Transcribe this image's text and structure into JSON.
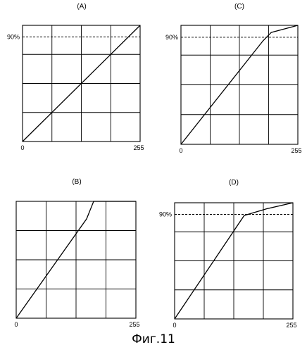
{
  "figure": {
    "caption": "Фиг.11",
    "panels": [
      {
        "id": "A",
        "title": "(A)",
        "x_start": "0",
        "x_end": "255",
        "y_marker": "90%"
      },
      {
        "id": "C",
        "title": "(C)",
        "x_start": "0",
        "x_end": "255",
        "y_marker": "90%"
      },
      {
        "id": "B",
        "title": "(B)",
        "x_start": "0",
        "x_end": "255",
        "y_marker": ""
      },
      {
        "id": "D",
        "title": "(D)",
        "x_start": "0",
        "x_end": "255",
        "y_marker": "90%"
      }
    ]
  },
  "chart_data": [
    {
      "type": "line",
      "title": "(A)",
      "xlim": [
        0,
        255
      ],
      "ylim": [
        0,
        100
      ],
      "grid": true,
      "reference_line": {
        "y": 90,
        "style": "dashed",
        "label": "90%"
      },
      "x": [
        0,
        255
      ],
      "y": [
        0,
        100
      ]
    },
    {
      "type": "line",
      "title": "(C)",
      "xlim": [
        0,
        255
      ],
      "ylim": [
        0,
        100
      ],
      "grid": true,
      "reference_line": {
        "y": 90,
        "style": "dashed",
        "label": "90%"
      },
      "x": [
        0,
        179,
        197,
        255
      ],
      "y": [
        0,
        87,
        94,
        100
      ]
    },
    {
      "type": "line",
      "title": "(B)",
      "xlim": [
        0,
        255
      ],
      "ylim": [
        0,
        100
      ],
      "grid": true,
      "x": [
        0,
        150,
        165,
        255
      ],
      "y": [
        0,
        85,
        100,
        100
      ]
    },
    {
      "type": "line",
      "title": "(D)",
      "xlim": [
        0,
        255
      ],
      "ylim": [
        0,
        100
      ],
      "grid": true,
      "reference_line": {
        "y": 90,
        "style": "dashed",
        "label": "90%"
      },
      "x": [
        0,
        150,
        200,
        255
      ],
      "y": [
        0,
        89,
        95,
        100
      ]
    }
  ]
}
